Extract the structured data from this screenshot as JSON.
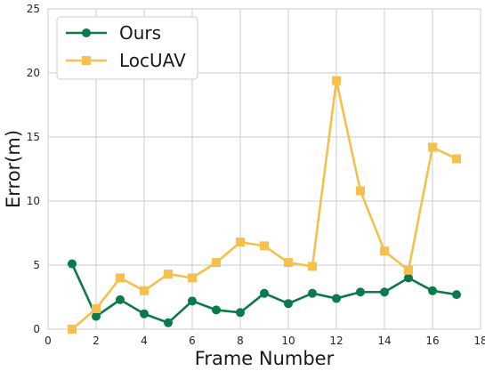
{
  "chart_data": {
    "type": "line",
    "xlabel": "Frame Number",
    "ylabel": "Error(m)",
    "xlim": [
      0,
      18
    ],
    "ylim": [
      0,
      25
    ],
    "xticks": [
      0,
      2,
      4,
      6,
      8,
      10,
      12,
      14,
      16,
      18
    ],
    "yticks": [
      0,
      5,
      10,
      15,
      20,
      25
    ],
    "grid": true,
    "legend_position": "top-left",
    "x": [
      1,
      2,
      3,
      4,
      5,
      6,
      7,
      8,
      9,
      10,
      11,
      12,
      13,
      14,
      15,
      16,
      17
    ],
    "series": [
      {
        "name": "Ours",
        "color": "#0b7a4b",
        "marker": "circle",
        "values": [
          5.1,
          1.0,
          2.3,
          1.2,
          0.5,
          2.2,
          1.5,
          1.3,
          2.8,
          2.0,
          2.8,
          2.4,
          2.9,
          2.9,
          4.0,
          3.0,
          2.7
        ]
      },
      {
        "name": "LocUAV",
        "color": "#f5c04c",
        "marker": "square",
        "values": [
          0.0,
          1.6,
          4.0,
          3.0,
          4.3,
          4.0,
          5.2,
          6.8,
          6.5,
          5.2,
          4.9,
          19.4,
          10.8,
          6.1,
          4.6,
          14.2,
          13.3
        ]
      }
    ]
  }
}
